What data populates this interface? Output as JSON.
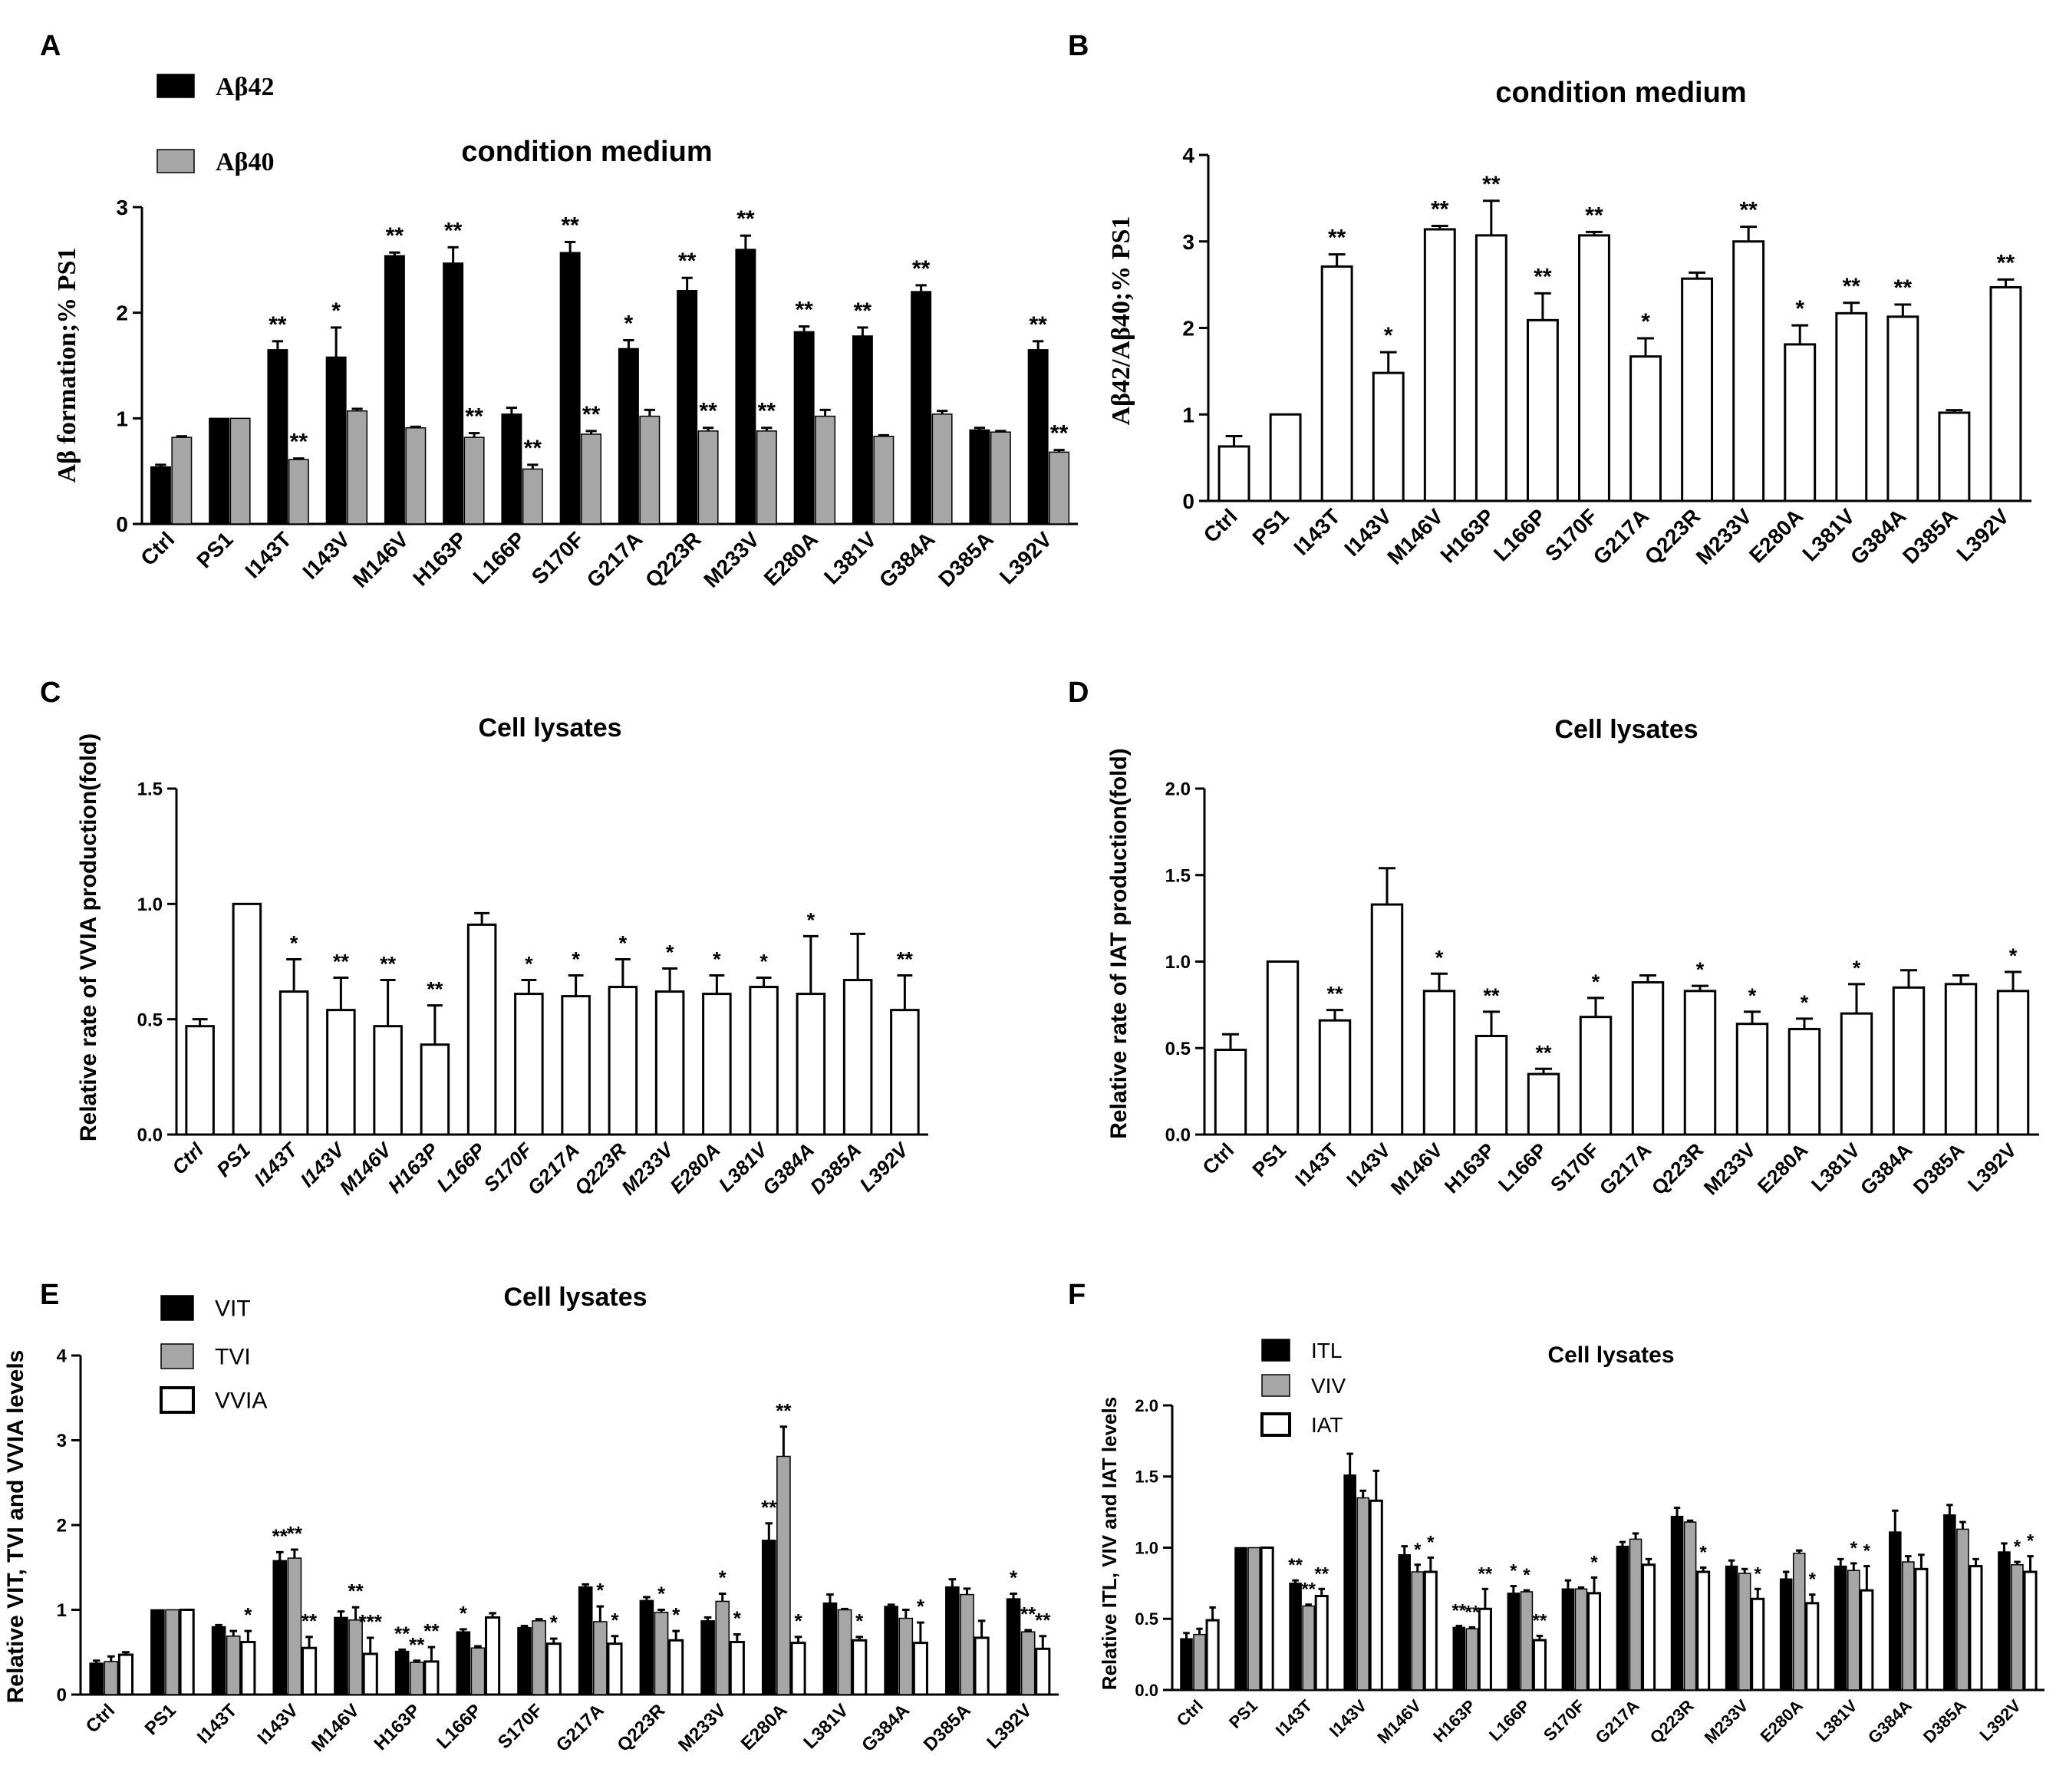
{
  "categories": [
    "Ctrl",
    "PS1",
    "I143T",
    "I143V",
    "M146V",
    "H163P",
    "L166P",
    "S170F",
    "G217A",
    "Q223R",
    "M233V",
    "E280A",
    "L381V",
    "G384A",
    "D385A",
    "L392V"
  ],
  "colors": {
    "black": "#000000",
    "grey": "#a6a6a6",
    "white": "#ffffff"
  },
  "chart_data": [
    {
      "panel": "A",
      "type": "bar",
      "title": "condition medium",
      "ylabel": "Aβ formation;% PS1",
      "ylim": [
        0,
        3
      ],
      "yticks": [
        "0",
        "1",
        "2",
        "3"
      ],
      "series": [
        {
          "name": "Aβ42",
          "color": "black",
          "values": [
            0.54,
            1.0,
            1.65,
            1.58,
            2.54,
            2.47,
            1.04,
            2.57,
            1.66,
            2.21,
            2.6,
            1.82,
            1.78,
            2.2,
            0.89,
            1.65
          ],
          "errors": [
            0.02,
            0,
            0.08,
            0.28,
            0.03,
            0.15,
            0.06,
            0.1,
            0.08,
            0.12,
            0.13,
            0.05,
            0.08,
            0.06,
            0.02,
            0.08
          ],
          "sig": [
            "",
            "",
            "**",
            "*",
            "**",
            "**",
            "",
            "**",
            "*",
            "**",
            "**",
            "**",
            "**",
            "**",
            "",
            "**"
          ]
        },
        {
          "name": "Aβ40",
          "color": "grey",
          "values": [
            0.82,
            1.0,
            0.61,
            1.07,
            0.91,
            0.82,
            0.52,
            0.85,
            1.02,
            0.88,
            0.88,
            1.02,
            0.83,
            1.04,
            0.87,
            0.68
          ],
          "errors": [
            0.01,
            0,
            0.01,
            0.02,
            0.01,
            0.04,
            0.04,
            0.03,
            0.06,
            0.03,
            0.03,
            0.06,
            0.01,
            0.03,
            0.01,
            0.02
          ],
          "sig": [
            "",
            "",
            "**",
            "",
            "",
            "**",
            "**",
            "**",
            "",
            "**",
            "**",
            "",
            "",
            "",
            "",
            "**"
          ]
        }
      ]
    },
    {
      "panel": "B",
      "type": "bar",
      "title": "condition medium",
      "ylabel": "Aβ42/Aβ40;% PS1",
      "ylim": [
        0,
        4
      ],
      "yticks": [
        "0",
        "1",
        "2",
        "3",
        "4"
      ],
      "series": [
        {
          "name": "Aβ42/Aβ40",
          "color": "white",
          "values": [
            0.63,
            1.0,
            2.71,
            1.48,
            3.14,
            3.07,
            2.09,
            3.07,
            1.67,
            2.57,
            3.0,
            1.81,
            2.17,
            2.13,
            1.02,
            2.47
          ],
          "errors": [
            0.12,
            0,
            0.14,
            0.24,
            0.04,
            0.4,
            0.31,
            0.04,
            0.21,
            0.07,
            0.17,
            0.22,
            0.12,
            0.14,
            0.03,
            0.09
          ],
          "sig": [
            "",
            "",
            "**",
            "*",
            "**",
            "**",
            "**",
            "**",
            "*",
            "",
            "**",
            "*",
            "**",
            "**",
            "",
            "**"
          ]
        }
      ]
    },
    {
      "panel": "C",
      "type": "bar",
      "title": "Cell lysates",
      "ylabel": "Relative rate of VVIA production(fold)",
      "ylim": [
        0,
        1.5
      ],
      "yticks": [
        "0.0",
        "0.5",
        "1.0",
        "1.5"
      ],
      "series": [
        {
          "name": "VVIA",
          "color": "white",
          "values": [
            0.47,
            1.0,
            0.62,
            0.54,
            0.47,
            0.39,
            0.91,
            0.61,
            0.6,
            0.64,
            0.62,
            0.61,
            0.64,
            0.61,
            0.67,
            0.54
          ],
          "errors": [
            0.03,
            0,
            0.14,
            0.14,
            0.2,
            0.17,
            0.05,
            0.06,
            0.09,
            0.12,
            0.1,
            0.08,
            0.04,
            0.25,
            0.2,
            0.15
          ],
          "sig": [
            "",
            "",
            "*",
            "**",
            "**",
            "**",
            "",
            "*",
            "*",
            "*",
            "*",
            "*",
            "*",
            "*",
            "",
            "**"
          ]
        }
      ]
    },
    {
      "panel": "D",
      "type": "bar",
      "title": "Cell lysates",
      "ylabel": "Relative rate of IAT production(fold)",
      "ylim": [
        0,
        2.0
      ],
      "yticks": [
        "0.0",
        "0.5",
        "1.0",
        "1.5",
        "2.0"
      ],
      "series": [
        {
          "name": "IAT",
          "color": "white",
          "values": [
            0.49,
            1.0,
            0.66,
            1.33,
            0.83,
            0.57,
            0.35,
            0.68,
            0.88,
            0.83,
            0.64,
            0.61,
            0.7,
            0.85,
            0.87,
            0.83
          ],
          "errors": [
            0.09,
            0,
            0.06,
            0.21,
            0.1,
            0.14,
            0.03,
            0.11,
            0.04,
            0.03,
            0.07,
            0.06,
            0.17,
            0.1,
            0.05,
            0.11
          ],
          "sig": [
            "",
            "",
            "**",
            "",
            "*",
            "**",
            "**",
            "*",
            "",
            "*",
            "*",
            "*",
            "*",
            "",
            "",
            "*"
          ]
        }
      ]
    },
    {
      "panel": "E",
      "type": "bar",
      "title": "Cell lysates",
      "ylabel": "Relative VIT, TVI and VVIA levels",
      "ylim": [
        0,
        4
      ],
      "yticks": [
        "0",
        "1",
        "2",
        "3",
        "4"
      ],
      "series": [
        {
          "name": "VIT",
          "color": "black",
          "values": [
            0.37,
            1.0,
            0.8,
            1.58,
            0.91,
            0.51,
            0.74,
            0.79,
            1.27,
            1.11,
            0.87,
            1.82,
            1.08,
            1.04,
            1.27,
            1.13
          ],
          "errors": [
            0.03,
            0,
            0.02,
            0.1,
            0.07,
            0.02,
            0.03,
            0.02,
            0.03,
            0.04,
            0.04,
            0.2,
            0.1,
            0.02,
            0.09,
            0.06
          ],
          "sig": [
            "",
            "",
            "",
            "**",
            "",
            "**",
            "*",
            "",
            "",
            "",
            "",
            "**",
            "",
            "",
            "",
            "*"
          ]
        },
        {
          "name": "TVI",
          "color": "grey",
          "values": [
            0.39,
            1.0,
            0.69,
            1.61,
            0.88,
            0.38,
            0.55,
            0.87,
            0.86,
            0.97,
            1.1,
            2.81,
            1.0,
            0.9,
            1.18,
            0.74
          ],
          "errors": [
            0.06,
            0,
            0.06,
            0.1,
            0.15,
            0.02,
            0.02,
            0.02,
            0.18,
            0.03,
            0.09,
            0.35,
            0.01,
            0.1,
            0.07,
            0.02
          ],
          "sig": [
            "",
            "",
            "",
            "**",
            "**",
            "**",
            "",
            "",
            "*",
            "*",
            "*",
            "**",
            "",
            "",
            "",
            "**"
          ]
        },
        {
          "name": "VVIA",
          "color": "white",
          "values": [
            0.47,
            1.0,
            0.62,
            0.55,
            0.48,
            0.39,
            0.91,
            0.6,
            0.6,
            0.64,
            0.62,
            0.61,
            0.64,
            0.61,
            0.67,
            0.54
          ],
          "errors": [
            0.03,
            0,
            0.13,
            0.13,
            0.19,
            0.17,
            0.05,
            0.06,
            0.09,
            0.11,
            0.09,
            0.07,
            0.04,
            0.24,
            0.2,
            0.15
          ],
          "sig": [
            "",
            "",
            "*",
            "**",
            "***",
            "**",
            "",
            "*",
            "*",
            "*",
            "*",
            "*",
            "*",
            "*",
            "",
            "**"
          ]
        }
      ]
    },
    {
      "panel": "F",
      "type": "bar",
      "title": "Cell lysates",
      "ylabel": "Relative ITL, VIV and IAT levels",
      "ylim": [
        0,
        2.0
      ],
      "yticks": [
        "0.0",
        "0.5",
        "1.0",
        "1.5",
        "2.0"
      ],
      "series": [
        {
          "name": "ITL",
          "color": "black",
          "values": [
            0.36,
            1.0,
            0.75,
            1.51,
            0.95,
            0.44,
            0.68,
            0.71,
            1.01,
            1.22,
            0.87,
            0.78,
            0.87,
            1.11,
            1.23,
            0.97
          ],
          "errors": [
            0.04,
            0,
            0.02,
            0.15,
            0.06,
            0.01,
            0.05,
            0.06,
            0.03,
            0.06,
            0.04,
            0.05,
            0.05,
            0.15,
            0.07,
            0.06
          ],
          "sig": [
            "",
            "",
            "**",
            "",
            "",
            "**",
            "*",
            "",
            "",
            "",
            "",
            "",
            "",
            "",
            "",
            ""
          ]
        },
        {
          "name": "VIV",
          "color": "grey",
          "values": [
            0.39,
            1.0,
            0.59,
            1.35,
            0.83,
            0.43,
            0.69,
            0.71,
            1.06,
            1.18,
            0.82,
            0.96,
            0.84,
            0.9,
            1.13,
            0.88
          ],
          "errors": [
            0.04,
            0,
            0.01,
            0.05,
            0.05,
            0.01,
            0.01,
            0.01,
            0.04,
            0.01,
            0.03,
            0.02,
            0.05,
            0.04,
            0.05,
            0.02
          ],
          "sig": [
            "",
            "",
            "**",
            "",
            "*",
            "**",
            "*",
            "",
            "",
            "",
            "",
            "",
            "*",
            "",
            "",
            "*"
          ]
        },
        {
          "name": "IAT",
          "color": "white",
          "values": [
            0.49,
            1.0,
            0.66,
            1.33,
            0.83,
            0.57,
            0.35,
            0.68,
            0.88,
            0.83,
            0.64,
            0.61,
            0.7,
            0.85,
            0.87,
            0.83
          ],
          "errors": [
            0.09,
            0,
            0.05,
            0.21,
            0.1,
            0.14,
            0.03,
            0.11,
            0.04,
            0.03,
            0.07,
            0.06,
            0.17,
            0.1,
            0.05,
            0.11
          ],
          "sig": [
            "",
            "",
            "**",
            "",
            "*",
            "**",
            "**",
            "*",
            "",
            "*",
            "*",
            "*",
            "*",
            "",
            "",
            "*"
          ]
        }
      ]
    }
  ]
}
